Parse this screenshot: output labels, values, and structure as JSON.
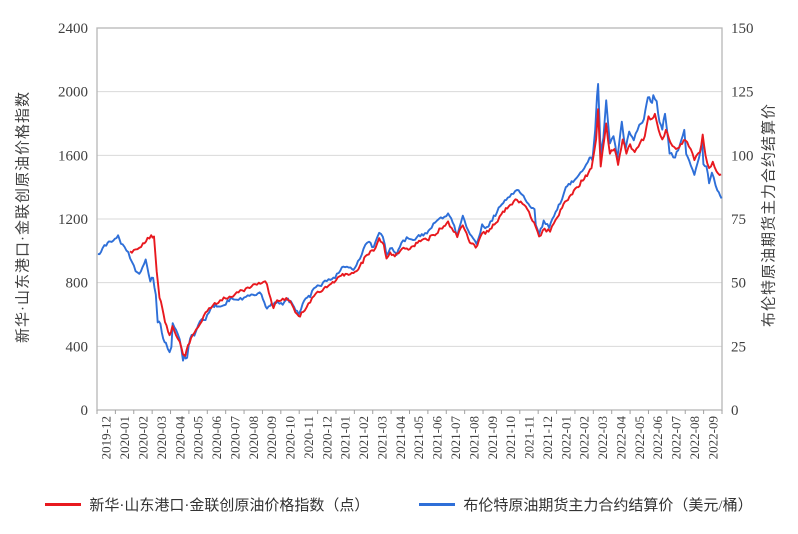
{
  "chart_data": {
    "type": "line",
    "title": "",
    "grid": "horizontal",
    "legend_position": "bottom",
    "y_left": {
      "title": "新华·山东港口·金联创原油价格指数",
      "min": 0,
      "max": 2400,
      "step": 400,
      "ticks": [
        0,
        400,
        800,
        1200,
        1600,
        2000,
        2400
      ]
    },
    "y_right": {
      "title": "布伦特原油期货主力合约结算价",
      "min": 0,
      "max": 150,
      "step": 25,
      "ticks": [
        0,
        25,
        50,
        75,
        100,
        125,
        150
      ]
    },
    "x_axis": {
      "unit": "month",
      "tick_labels": [
        "2019-12",
        "2020-01",
        "2020-02",
        "2020-03",
        "2020-04",
        "2020-05",
        "2020-06",
        "2020-07",
        "2020-08",
        "2020-09",
        "2020-10",
        "2020-11",
        "2020-12",
        "2021-01",
        "2021-02",
        "2021-03",
        "2021-04",
        "2021-05",
        "2021-06",
        "2021-07",
        "2021-08",
        "2021-09",
        "2021-10",
        "2021-11",
        "2021-12",
        "2022-01",
        "2022-02",
        "2022-03",
        "2022-04",
        "2022-05",
        "2022-06",
        "2022-07",
        "2022-08",
        "2022-09"
      ]
    },
    "colors": {
      "index_red": "#e8191f",
      "brent_blue": "#2e6fd8",
      "grid": "#d9d9d9",
      "border": "#b7b7b7",
      "tick": "#a0a0a0"
    },
    "series": [
      {
        "name": "布伦特原油期货主力合约结算价（美元/桶）",
        "color": "#2e6fd8",
        "axis": "right",
        "unit": "USD/barrel",
        "points": [
          [
            0.05,
            61.2
          ],
          [
            0.3,
            63.5
          ],
          [
            0.5,
            64.5
          ],
          [
            0.65,
            66.2
          ],
          [
            0.8,
            66.0
          ],
          [
            1.15,
            68.6
          ],
          [
            1.3,
            65.3
          ],
          [
            1.5,
            64.0
          ],
          [
            1.7,
            62.0
          ],
          [
            1.9,
            58.2
          ],
          [
            2.1,
            54.5
          ],
          [
            2.3,
            53.5
          ],
          [
            2.65,
            59.1
          ],
          [
            2.9,
            50.5
          ],
          [
            3.05,
            51.9
          ],
          [
            3.2,
            45.3
          ],
          [
            3.3,
            34.4
          ],
          [
            3.45,
            33.9
          ],
          [
            3.6,
            28.0
          ],
          [
            3.75,
            26.4
          ],
          [
            3.95,
            22.7
          ],
          [
            4.05,
            24.7
          ],
          [
            4.12,
            34.1
          ],
          [
            4.3,
            31.5
          ],
          [
            4.5,
            27.7
          ],
          [
            4.68,
            19.4
          ],
          [
            4.75,
            21.3
          ],
          [
            4.9,
            20.5
          ],
          [
            4.99,
            25.3
          ],
          [
            5.15,
            29.5
          ],
          [
            5.3,
            29.2
          ],
          [
            5.6,
            34.8
          ],
          [
            5.9,
            35.3
          ],
          [
            6.1,
            38.3
          ],
          [
            6.3,
            40.8
          ],
          [
            6.45,
            41.5
          ],
          [
            6.6,
            40.7
          ],
          [
            6.9,
            41.1
          ],
          [
            7.1,
            43.1
          ],
          [
            7.35,
            43.8
          ],
          [
            7.6,
            43.3
          ],
          [
            7.9,
            43.3
          ],
          [
            8.1,
            44.4
          ],
          [
            8.4,
            45.4
          ],
          [
            8.75,
            45.8
          ],
          [
            8.95,
            45.3
          ],
          [
            9.1,
            42.3
          ],
          [
            9.25,
            39.8
          ],
          [
            9.5,
            41.8
          ],
          [
            9.75,
            42.0
          ],
          [
            10.1,
            41.3
          ],
          [
            10.3,
            43.3
          ],
          [
            10.55,
            42.7
          ],
          [
            10.8,
            39.1
          ],
          [
            10.97,
            37.5
          ],
          [
            11.1,
            39.5
          ],
          [
            11.35,
            43.8
          ],
          [
            11.6,
            44.3
          ],
          [
            11.8,
            47.8
          ],
          [
            12.1,
            48.8
          ],
          [
            12.4,
            50.8
          ],
          [
            12.7,
            51.1
          ],
          [
            12.95,
            51.8
          ],
          [
            13.15,
            53.8
          ],
          [
            13.4,
            56.3
          ],
          [
            13.7,
            55.9
          ],
          [
            13.95,
            55.0
          ],
          [
            14.2,
            58.5
          ],
          [
            14.5,
            63.3
          ],
          [
            14.8,
            66.1
          ],
          [
            15.05,
            64.0
          ],
          [
            15.35,
            69.6
          ],
          [
            15.55,
            68.0
          ],
          [
            15.75,
            60.8
          ],
          [
            15.95,
            63.5
          ],
          [
            16.15,
            62.2
          ],
          [
            16.3,
            60.9
          ],
          [
            16.65,
            66.6
          ],
          [
            16.95,
            67.3
          ],
          [
            17.2,
            66.7
          ],
          [
            17.5,
            68.7
          ],
          [
            17.75,
            68.5
          ],
          [
            17.95,
            69.3
          ],
          [
            18.2,
            71.5
          ],
          [
            18.5,
            74.4
          ],
          [
            18.8,
            75.2
          ],
          [
            19.1,
            77.2
          ],
          [
            19.35,
            73.6
          ],
          [
            19.6,
            68.6
          ],
          [
            19.9,
            76.3
          ],
          [
            20.2,
            70.4
          ],
          [
            20.55,
            66.5
          ],
          [
            20.65,
            65.2
          ],
          [
            20.95,
            72.9
          ],
          [
            21.2,
            71.8
          ],
          [
            21.5,
            74.3
          ],
          [
            21.85,
            79.5
          ],
          [
            22.1,
            81.3
          ],
          [
            22.35,
            83.4
          ],
          [
            22.65,
            84.9
          ],
          [
            22.85,
            86.4
          ],
          [
            23.1,
            84.7
          ],
          [
            23.3,
            82.6
          ],
          [
            23.55,
            80.0
          ],
          [
            23.8,
            78.9
          ],
          [
            23.87,
            72.7
          ],
          [
            23.98,
            70.6
          ],
          [
            24.05,
            68.9
          ],
          [
            24.3,
            74.4
          ],
          [
            24.6,
            71.5
          ],
          [
            24.95,
            77.8
          ],
          [
            25.2,
            81.0
          ],
          [
            25.5,
            87.5
          ],
          [
            25.9,
            89.5
          ],
          [
            26.1,
            91.2
          ],
          [
            26.3,
            93.3
          ],
          [
            26.5,
            94.8
          ],
          [
            26.8,
            99.1
          ],
          [
            26.95,
            98.0
          ],
          [
            27.1,
            110.0
          ],
          [
            27.2,
            123.2
          ],
          [
            27.26,
            128.0
          ],
          [
            27.4,
            99.9
          ],
          [
            27.55,
            106.9
          ],
          [
            27.7,
            121.6
          ],
          [
            27.9,
            104.7
          ],
          [
            28.1,
            107.5
          ],
          [
            28.3,
            98.5
          ],
          [
            28.55,
            113.2
          ],
          [
            28.75,
            102.3
          ],
          [
            28.95,
            109.3
          ],
          [
            29.2,
            105.9
          ],
          [
            29.5,
            112.0
          ],
          [
            29.75,
            114.2
          ],
          [
            29.97,
            122.8
          ],
          [
            30.2,
            120.6
          ],
          [
            30.26,
            123.6
          ],
          [
            30.45,
            121.2
          ],
          [
            30.6,
            113.1
          ],
          [
            30.75,
            110.1
          ],
          [
            30.9,
            116.3
          ],
          [
            31.15,
            100.7
          ],
          [
            31.45,
            99.1
          ],
          [
            31.7,
            103.9
          ],
          [
            31.95,
            110.0
          ],
          [
            32.05,
            100.5
          ],
          [
            32.3,
            96.0
          ],
          [
            32.5,
            92.3
          ],
          [
            32.75,
            99.0
          ],
          [
            32.93,
            105.1
          ],
          [
            32.99,
            96.5
          ],
          [
            33.15,
            95.7
          ],
          [
            33.3,
            89.0
          ],
          [
            33.45,
            93.2
          ],
          [
            33.55,
            91.3
          ],
          [
            33.75,
            86.2
          ],
          [
            33.9,
            84.1
          ],
          [
            33.98,
            83.1
          ]
        ]
      },
      {
        "name": "新华·山东港口·金联创原油价格指数（点）",
        "color": "#e8191f",
        "axis": "left",
        "unit": "points",
        "points": [
          [
            1.8,
            997
          ],
          [
            1.9,
            988
          ],
          [
            2.0,
            1005
          ],
          [
            2.2,
            1010
          ],
          [
            2.5,
            1048
          ],
          [
            2.75,
            1082
          ],
          [
            2.95,
            1098
          ],
          [
            3.1,
            1090
          ],
          [
            3.25,
            870
          ],
          [
            3.4,
            705
          ],
          [
            3.55,
            640
          ],
          [
            3.7,
            552
          ],
          [
            3.95,
            470
          ],
          [
            4.1,
            527
          ],
          [
            4.3,
            470
          ],
          [
            4.5,
            430
          ],
          [
            4.68,
            350
          ],
          [
            4.8,
            340
          ],
          [
            4.95,
            408
          ],
          [
            5.2,
            470
          ],
          [
            5.5,
            520
          ],
          [
            5.8,
            590
          ],
          [
            6.1,
            640
          ],
          [
            6.4,
            672
          ],
          [
            6.7,
            690
          ],
          [
            7.0,
            700
          ],
          [
            7.3,
            710
          ],
          [
            7.6,
            740
          ],
          [
            7.9,
            752
          ],
          [
            8.2,
            770
          ],
          [
            8.5,
            790
          ],
          [
            8.8,
            800
          ],
          [
            9.05,
            805
          ],
          [
            9.25,
            790
          ],
          [
            9.45,
            700
          ],
          [
            9.6,
            640
          ],
          [
            9.8,
            690
          ],
          [
            10.1,
            700
          ],
          [
            10.4,
            690
          ],
          [
            10.7,
            640
          ],
          [
            10.97,
            590
          ],
          [
            11.2,
            615
          ],
          [
            11.5,
            670
          ],
          [
            11.8,
            715
          ],
          [
            12.1,
            740
          ],
          [
            12.5,
            770
          ],
          [
            12.9,
            800
          ],
          [
            13.2,
            840
          ],
          [
            13.6,
            855
          ],
          [
            13.95,
            860
          ],
          [
            14.3,
            905
          ],
          [
            14.7,
            975
          ],
          [
            15.05,
            1000
          ],
          [
            15.35,
            1080
          ],
          [
            15.6,
            1040
          ],
          [
            15.75,
            952
          ],
          [
            15.95,
            990
          ],
          [
            16.2,
            965
          ],
          [
            16.5,
            1000
          ],
          [
            16.85,
            1015
          ],
          [
            17.2,
            1030
          ],
          [
            17.6,
            1060
          ],
          [
            17.95,
            1070
          ],
          [
            18.3,
            1100
          ],
          [
            18.7,
            1140
          ],
          [
            19.1,
            1185
          ],
          [
            19.4,
            1120
          ],
          [
            19.6,
            1086
          ],
          [
            19.9,
            1160
          ],
          [
            20.2,
            1075
          ],
          [
            20.6,
            1020
          ],
          [
            20.95,
            1110
          ],
          [
            21.3,
            1120
          ],
          [
            21.7,
            1175
          ],
          [
            22.0,
            1230
          ],
          [
            22.4,
            1280
          ],
          [
            22.85,
            1320
          ],
          [
            23.15,
            1295
          ],
          [
            23.5,
            1245
          ],
          [
            23.87,
            1150
          ],
          [
            24.05,
            1090
          ],
          [
            24.35,
            1140
          ],
          [
            24.65,
            1120
          ],
          [
            24.95,
            1195
          ],
          [
            25.3,
            1270
          ],
          [
            25.7,
            1340
          ],
          [
            26.1,
            1400
          ],
          [
            26.5,
            1450
          ],
          [
            26.9,
            1520
          ],
          [
            27.15,
            1700
          ],
          [
            27.26,
            1890
          ],
          [
            27.4,
            1530
          ],
          [
            27.7,
            1800
          ],
          [
            27.9,
            1610
          ],
          [
            28.15,
            1640
          ],
          [
            28.35,
            1540
          ],
          [
            28.6,
            1700
          ],
          [
            28.8,
            1610
          ],
          [
            29.0,
            1670
          ],
          [
            29.25,
            1620
          ],
          [
            29.55,
            1680
          ],
          [
            29.8,
            1720
          ],
          [
            30.0,
            1845
          ],
          [
            30.2,
            1830
          ],
          [
            30.35,
            1860
          ],
          [
            30.55,
            1760
          ],
          [
            30.75,
            1700
          ],
          [
            30.95,
            1760
          ],
          [
            31.2,
            1680
          ],
          [
            31.5,
            1640
          ],
          [
            31.75,
            1670
          ],
          [
            32.0,
            1695
          ],
          [
            32.2,
            1655
          ],
          [
            32.5,
            1570
          ],
          [
            32.8,
            1620
          ],
          [
            32.95,
            1730
          ],
          [
            33.1,
            1600
          ],
          [
            33.3,
            1520
          ],
          [
            33.5,
            1560
          ],
          [
            33.7,
            1500
          ],
          [
            33.95,
            1480
          ]
        ]
      }
    ]
  }
}
